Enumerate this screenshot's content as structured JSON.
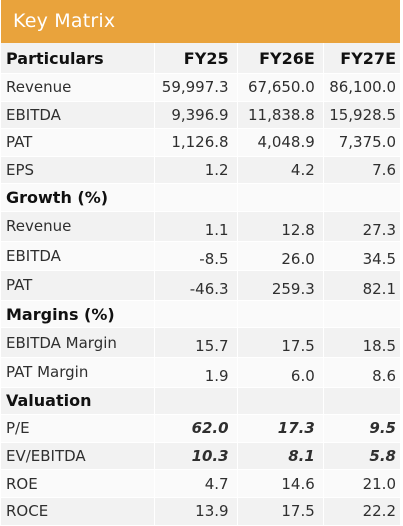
{
  "title": "Key Matrix",
  "columns": [
    "Particulars",
    "FY25",
    "FY26E",
    "FY27E"
  ],
  "sections": {
    "main": [
      {
        "label": "Revenue",
        "values": [
          "59,997.3",
          "67,650.0",
          "86,100.0"
        ]
      },
      {
        "label": "EBITDA",
        "values": [
          "9,396.9",
          "11,838.8",
          "15,928.5"
        ]
      },
      {
        "label": "PAT",
        "values": [
          "1,126.8",
          "4,048.9",
          "7,375.0"
        ]
      },
      {
        "label": "EPS",
        "values": [
          "1.2",
          "4.2",
          "7.6"
        ]
      }
    ],
    "growth": {
      "heading": "Growth (%)",
      "rows": [
        {
          "label": "Revenue",
          "values": [
            "1.1",
            "12.8",
            "27.3"
          ]
        },
        {
          "label": "EBITDA",
          "values": [
            "-8.5",
            "26.0",
            "34.5"
          ]
        },
        {
          "label": "PAT",
          "values": [
            "-46.3",
            "259.3",
            "82.1"
          ]
        }
      ]
    },
    "margins": {
      "heading": "Margins (%)",
      "rows": [
        {
          "label": "EBITDA Margin",
          "values": [
            "15.7",
            "17.5",
            "18.5"
          ]
        },
        {
          "label": "PAT Margin",
          "values": [
            "1.9",
            "6.0",
            "8.6"
          ]
        }
      ]
    },
    "valuation": {
      "heading": "Valuation",
      "rows": [
        {
          "label": "P/E",
          "values": [
            "62.0",
            "17.3",
            "9.5"
          ]
        },
        {
          "label": "EV/EBITDA",
          "values": [
            "10.3",
            "8.1",
            "5.8"
          ]
        },
        {
          "label": "ROE",
          "values": [
            "4.7",
            "14.6",
            "21.0"
          ]
        },
        {
          "label": "ROCE",
          "values": [
            "13.9",
            "17.5",
            "22.2"
          ]
        }
      ]
    }
  }
}
